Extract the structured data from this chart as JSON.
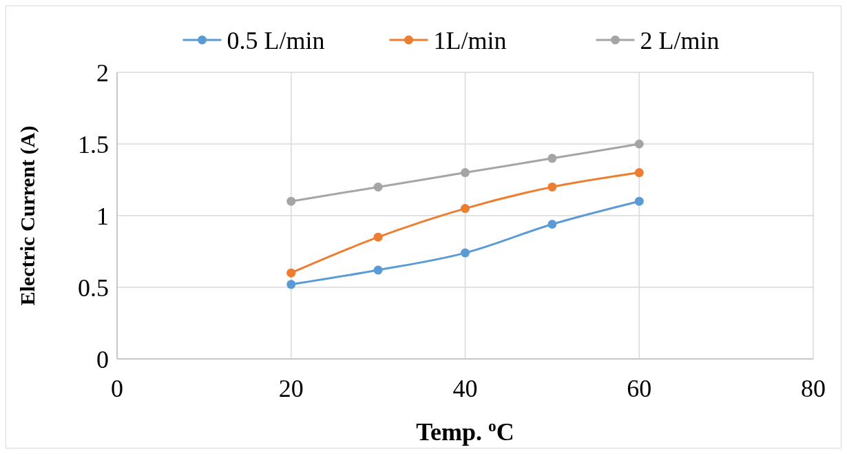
{
  "chart_data": {
    "type": "line",
    "xlabel": "Temp. $^{o}$C",
    "ylabel": "Electric Current (A)",
    "x": [
      20,
      30,
      40,
      50,
      60
    ],
    "series": [
      {
        "name": "0.5 L/min",
        "color": "#5b9bd5",
        "values": [
          0.52,
          0.62,
          0.74,
          0.94,
          1.1
        ]
      },
      {
        "name": "1L/min",
        "color": "#ed7d31",
        "values": [
          0.6,
          0.85,
          1.05,
          1.2,
          1.3
        ]
      },
      {
        "name": "2 L/min",
        "color": "#a5a5a5",
        "values": [
          1.1,
          1.2,
          1.3,
          1.4,
          1.5
        ]
      }
    ],
    "xlim": [
      0,
      80
    ],
    "xticks": [
      0,
      20,
      40,
      60,
      80
    ],
    "ylim": [
      0,
      2
    ],
    "yticks": [
      0,
      0.5,
      1,
      1.5,
      2
    ],
    "grid": true,
    "legend": "top",
    "marker": "circle",
    "line_style": "solid"
  }
}
